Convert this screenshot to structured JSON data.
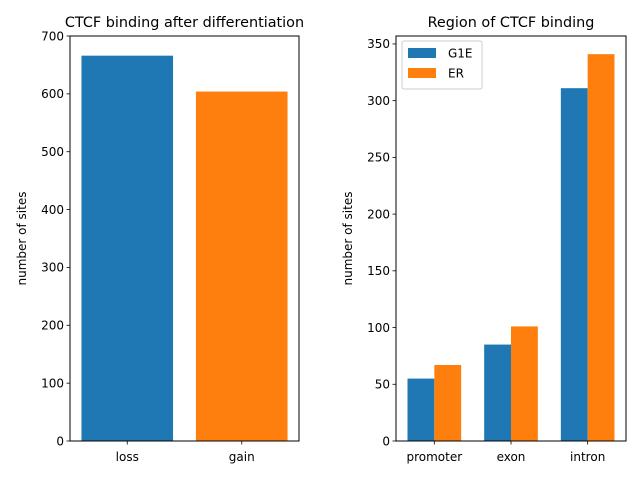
{
  "chart_data": [
    {
      "type": "bar",
      "title": "CTCF binding after differentiation",
      "xlabel": "",
      "ylabel": "number of sites",
      "categories": [
        "loss",
        "gain"
      ],
      "values": [
        666,
        604
      ],
      "bar_colors": [
        "#1f77b4",
        "#ff7f0e"
      ],
      "ylim": [
        0,
        700
      ],
      "yticks": [
        0,
        100,
        200,
        300,
        400,
        500,
        600,
        700
      ],
      "grid": false,
      "legend": null
    },
    {
      "type": "bar",
      "title": "Region of CTCF binding",
      "xlabel": "",
      "ylabel": "number of sites",
      "categories": [
        "promoter",
        "exon",
        "intron"
      ],
      "series": [
        {
          "name": "G1E",
          "values": [
            55,
            85,
            311
          ],
          "color": "#1f77b4"
        },
        {
          "name": "ER",
          "values": [
            67,
            101,
            341
          ],
          "color": "#ff7f0e"
        }
      ],
      "ylim": [
        0,
        357
      ],
      "yticks": [
        0,
        50,
        100,
        150,
        200,
        250,
        300,
        350
      ],
      "grid": false,
      "legend": "top-left"
    }
  ]
}
